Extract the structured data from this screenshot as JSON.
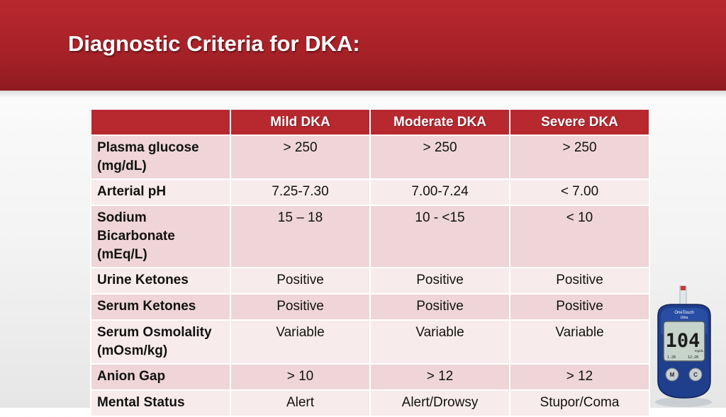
{
  "slide": {
    "title": "Diagnostic Criteria for DKA:",
    "colors": {
      "banner": "#a82228",
      "header_row": "#b8282f",
      "row_odd": "#efd5d7",
      "row_even": "#f8ebeb"
    }
  },
  "table": {
    "headers": [
      "",
      "Mild DKA",
      "Moderate DKA",
      "Severe DKA"
    ],
    "rows": [
      {
        "label_lines": [
          "Plasma glucose",
          "(mg/dL)"
        ],
        "values": [
          "> 250",
          "> 250",
          "> 250"
        ]
      },
      {
        "label_lines": [
          "Arterial pH"
        ],
        "values": [
          "7.25-7.30",
          "7.00-7.24",
          "< 7.00"
        ]
      },
      {
        "label_lines": [
          "Sodium",
          "Bicarbonate",
          "(mEq/L)"
        ],
        "values": [
          "15 – 18",
          "10 - <15",
          "< 10"
        ]
      },
      {
        "label_lines": [
          "Urine Ketones"
        ],
        "values": [
          "Positive",
          "Positive",
          "Positive"
        ]
      },
      {
        "label_lines": [
          "Serum Ketones"
        ],
        "values": [
          "Positive",
          "Positive",
          "Positive"
        ]
      },
      {
        "label_lines": [
          "Serum Osmolality",
          "(mOsm/kg)"
        ],
        "values": [
          "Variable",
          "Variable",
          "Variable"
        ]
      },
      {
        "label_lines": [
          "Anion Gap"
        ],
        "values": [
          "> 10",
          "> 12",
          "> 12"
        ]
      },
      {
        "label_lines": [
          "Mental Status"
        ],
        "values": [
          "Alert",
          "Alert/Drowsy",
          "Stupor/Coma"
        ]
      }
    ]
  },
  "glucometer": {
    "brand_line1": "OneTouch",
    "brand_line2": "Ultra",
    "reading": "104",
    "unit": "mg/dL",
    "small_left": "1-28",
    "small_right": "12:28",
    "button_left": "M",
    "button_right": "C"
  }
}
